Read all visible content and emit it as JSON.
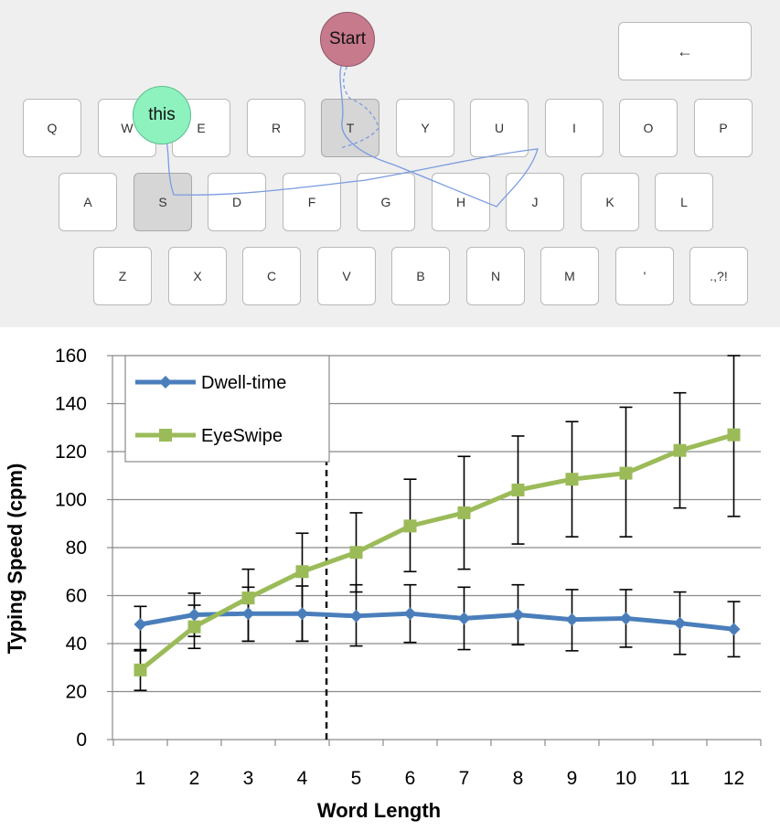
{
  "keyboard": {
    "rows": [
      [
        "Q",
        "W",
        "E",
        "R",
        "T",
        "Y",
        "U",
        "I",
        "O",
        "P"
      ],
      [
        "A",
        "S",
        "D",
        "F",
        "G",
        "H",
        "J",
        "K",
        "L"
      ],
      [
        "Z",
        "X",
        "C",
        "V",
        "B",
        "N",
        "M",
        "'",
        ".,?!"
      ]
    ],
    "highlighted": [
      "T",
      "S"
    ],
    "backspace_label": "←",
    "start_label": "Start",
    "suggestion_label": "this",
    "colors": {
      "start_bubble": "#c87a8d",
      "suggestion_bubble": "#8ef2bf",
      "swipe_path": "#7b9be0",
      "highlight_key": "#d6d6d6"
    }
  },
  "chart_data": {
    "type": "line",
    "x": [
      1,
      2,
      3,
      4,
      5,
      6,
      7,
      8,
      9,
      10,
      11,
      12
    ],
    "xlabel": "Word Length",
    "ylabel": "Typing Speed (cpm)",
    "ylim": [
      0,
      160
    ],
    "yticks": [
      0,
      20,
      40,
      60,
      80,
      100,
      120,
      140,
      160
    ],
    "grid": "horizontal",
    "legend_position": "top-left",
    "divider_between_x": [
      4,
      5
    ],
    "series": [
      {
        "name": "Dwell-time",
        "color": "#4a7ebb",
        "marker": "diamond",
        "values": [
          48,
          52,
          52.5,
          52.5,
          51.5,
          52.5,
          50.5,
          52,
          50,
          50.5,
          48.5,
          46
        ],
        "err_low": [
          37,
          43,
          41,
          41,
          39,
          40.5,
          37.5,
          39.5,
          37,
          38.5,
          35.5,
          34.5
        ],
        "err_high": [
          55.5,
          61,
          63.5,
          64,
          64.5,
          64.5,
          63.5,
          64.5,
          62.5,
          62.5,
          61.5,
          57.5
        ]
      },
      {
        "name": "EyeSwipe",
        "color": "#9bbb59",
        "marker": "square",
        "values": [
          29,
          47,
          59,
          70,
          78,
          89,
          94.5,
          104,
          108.5,
          111,
          120.5,
          127
        ],
        "err_low": [
          20.5,
          38,
          41,
          41,
          61.5,
          70,
          71,
          81.5,
          84.5,
          84.5,
          96.5,
          93
        ],
        "err_high": [
          37.5,
          56,
          71,
          86,
          94.5,
          108.5,
          118,
          126.5,
          132.5,
          138.5,
          144.5,
          160
        ]
      }
    ]
  }
}
